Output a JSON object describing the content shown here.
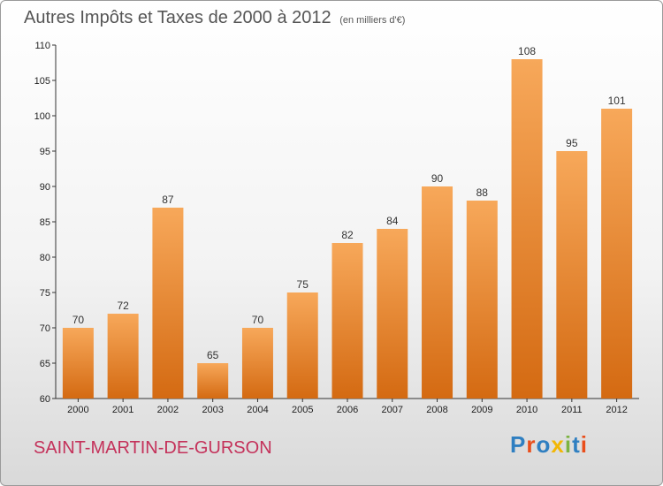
{
  "chart_data": {
    "type": "bar",
    "title": "Autres Impôts et Taxes de 2000 à 2012",
    "subtitle": "(en milliers d'€)",
    "categories": [
      "2000",
      "2001",
      "2002",
      "2003",
      "2004",
      "2005",
      "2006",
      "2007",
      "2008",
      "2009",
      "2010",
      "2011",
      "2012"
    ],
    "values": [
      70,
      72,
      87,
      65,
      70,
      75,
      82,
      84,
      90,
      88,
      108,
      95,
      101
    ],
    "ylim": [
      60,
      110
    ],
    "yticks": [
      60,
      65,
      70,
      75,
      80,
      85,
      90,
      95,
      100,
      105,
      110
    ],
    "grid": false,
    "bar_color": "#f08f3b"
  },
  "location": "SAINT-MARTIN-DE-GURSON",
  "logo": {
    "text": "Proxiti",
    "colors": [
      "#2f7fc1",
      "#e94e1b",
      "#2f7fc1",
      "#f2b705",
      "#7cb342",
      "#2f7fc1",
      "#e94e1b"
    ]
  }
}
